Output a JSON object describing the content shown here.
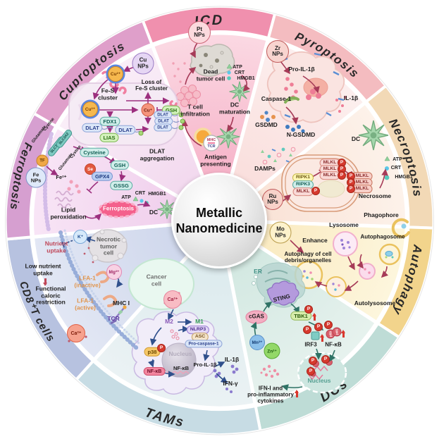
{
  "center": {
    "line1": "Metallic",
    "line2": "Nanomedicine"
  },
  "common": {
    "p": "P"
  },
  "wedges": {
    "icd": {
      "title": "ICD",
      "colors": {
        "band": "#f090ae",
        "fill": "#fbd9e3",
        "deep": "#f6b2c8"
      },
      "labels": {
        "pt_nps": "Pt\nNPs",
        "dead_cell": "Dead\ntumor cell",
        "atp": "ATP",
        "crt": "CRT",
        "hmgb1": "HMGB1",
        "t_cell": "T cell\ninfiltration",
        "dc_maturation": "DC\nmaturation",
        "mhc": "MHC",
        "tcr": "TCR",
        "antigen": "Antigen\npresenting"
      }
    },
    "pyroptosis": {
      "title": "Pyroptosis",
      "colors": {
        "band": "#f4bcc0",
        "fill": "#fcefee",
        "deep": "#fadedc"
      },
      "labels": {
        "zr_nps": "Zr\nNPs",
        "pro_il1b": "Pro-IL-1β",
        "caspase1": "Caspase-1",
        "gsdmd": "GSDMD",
        "n_gsdmd": "N-GSDMD",
        "il1b": "IL-1β",
        "damps": "DAMPs"
      }
    },
    "necroptosis": {
      "title": "Necroptosis",
      "colors": {
        "band": "#f2d9b6",
        "fill": "#fdf2ea",
        "deep": "#f9e2d6"
      },
      "labels": {
        "dc": "DC",
        "atp": "ATP",
        "crt": "CRT",
        "hmgb1": "HMGB1",
        "ripk1": "RIPK1",
        "ripk3": "RIPK3",
        "mlkl": "MLKL",
        "necrosome": "Necrosome",
        "ru_nps": "Ru\nNPs"
      }
    },
    "autophagy": {
      "title": "Autophagy",
      "colors": {
        "band": "#f2d48c",
        "fill": "#fdf6dd",
        "deep": "#faeac0"
      },
      "labels": {
        "mo_nps": "Mo\nNPs",
        "enhance": "Enhance",
        "debris": "Autophagy of cell\ndebris/organelles",
        "lysosome": "Lysosome",
        "phagophore": "Phagophore",
        "autophagosome": "Autophagosome",
        "autolysosome": "Autolysosome"
      }
    },
    "dcs": {
      "title": "DCs",
      "colors": {
        "band": "#bedcd6",
        "fill": "#e7f2ee",
        "deep": "#d2e8e1"
      },
      "labels": {
        "er": "ER",
        "sting": "STING",
        "cgas": "cGAS",
        "mn": "Mn²⁺",
        "zn": "Zn²⁺",
        "tbk1": "TBK1",
        "irf3": "IRF3",
        "nfkb": "NF-κB",
        "p50": "p50",
        "p65": "p65",
        "nucleus": "Nucleus",
        "ifn": "IFN-I and\npro-inflammatory\ncytokines"
      }
    },
    "tams": {
      "title": "TAMs",
      "colors": {
        "band": "#c7dce4",
        "fill": "#ebf2f4",
        "deep": "#dcebee"
      },
      "labels": {
        "cancer_cell": "Cancer\ncell",
        "ca": "Ca²⁺",
        "m2": "M2",
        "m1": "M1",
        "nlrp3": "NLRP3",
        "asc": "ASC",
        "pro_caspase1": "Pro-caspase-1",
        "p38": "p38",
        "nfkb": "NF-κB",
        "nucleus": "Nucleus",
        "nfkb_nuc": "NF-κB",
        "pro_il1b": "Pro-IL-1β",
        "il1b": "IL-1β",
        "ifng": "IFN-γ"
      }
    },
    "cd8": {
      "title": "CD8⁺T cells",
      "colors": {
        "band": "#b7c2e0",
        "fill": "#e2e7f4",
        "deep": "#cfd7ec"
      },
      "labels": {
        "nutrient": "Nutrient\nuptake",
        "k": "K⁺",
        "necrotic": "Necrotic\ntumor\ncell",
        "mg": "Mg²⁺",
        "low": "Low nutrient\nuptake",
        "restriction": "Functional\ncaloric\nrestriction",
        "lfa_inactive": "LFA-1\n(inactive)",
        "lfa_active": "LFA-1\n(active)",
        "mhc1": "MHC I",
        "tcr": "TCR",
        "ca": "Ca²⁺"
      }
    },
    "ferroptosis": {
      "title": "Ferroptosis",
      "colors": {
        "band": "#d69fd0",
        "fill": "#f8e5f6",
        "deep": "#f0cfec"
      },
      "labels": {
        "fe_nps": "Fe\nNPs",
        "tf": "TF",
        "slc7a11": "SLC7A11",
        "slc3a2": "SLC3A2",
        "glutamate": "Glutamate",
        "cystine": "Cystine",
        "cysteine": "Cysteine",
        "gsh": "GSH",
        "se": "Se",
        "gpx4": "GPX4",
        "gssg": "GSSG",
        "fe2": "Fe²⁺",
        "lipid": "Lipid\nperoxidation",
        "blob": "Ferroptosis",
        "atp": "ATP",
        "crt": "CRT",
        "hmgb1": "HMGB1",
        "dc": "DC"
      }
    },
    "cuproptosis": {
      "title": "Cuproptosis",
      "colors": {
        "band": "#df9fca",
        "fill": "#faeef8",
        "deep": "#f2d8ee"
      },
      "labels": {
        "cu_nps": "Cu\nNPs",
        "cu2": "Cu²⁺",
        "cu1": "Cu⁺",
        "fes": "Fe-S\ncluster",
        "loss": "Loss of\nFe-S cluster",
        "gsh": "GSH",
        "fdx1": "FDX1",
        "dlat": "DLAT",
        "lias": "LIAS",
        "aggregation": "DLAT\naggregation"
      }
    }
  }
}
